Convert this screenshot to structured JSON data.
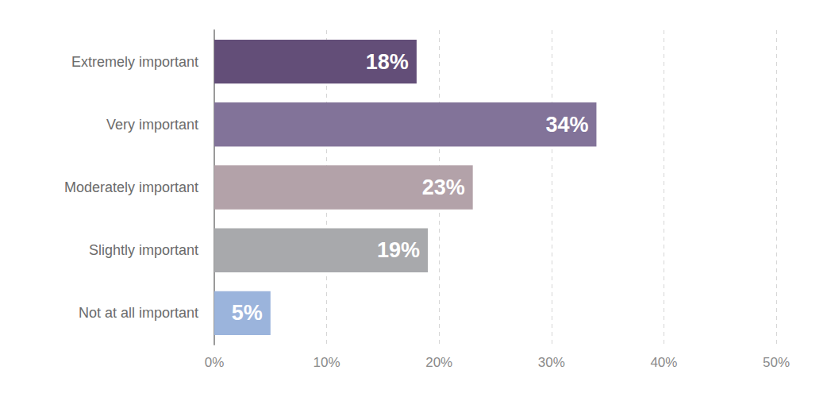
{
  "chart_data": {
    "type": "bar",
    "orientation": "horizontal",
    "categories": [
      "Extremely important",
      "Very important",
      "Moderately important",
      "Slightly important",
      "Not at all important"
    ],
    "values": [
      18,
      34,
      23,
      19,
      5
    ],
    "value_labels": [
      "18%",
      "34%",
      "23%",
      "19%",
      "5%"
    ],
    "colors": [
      "#634e78",
      "#827399",
      "#b3a2a9",
      "#a8a9ac",
      "#9bb4dc"
    ],
    "xlim": [
      0,
      50
    ],
    "xticks": [
      {
        "value": 0,
        "label": "0%"
      },
      {
        "value": 10,
        "label": "10%"
      },
      {
        "value": 20,
        "label": "20%"
      },
      {
        "value": 30,
        "label": "30%"
      },
      {
        "value": 40,
        "label": "40%"
      },
      {
        "value": 50,
        "label": "50%"
      }
    ],
    "grid": true,
    "data_labels": true
  }
}
